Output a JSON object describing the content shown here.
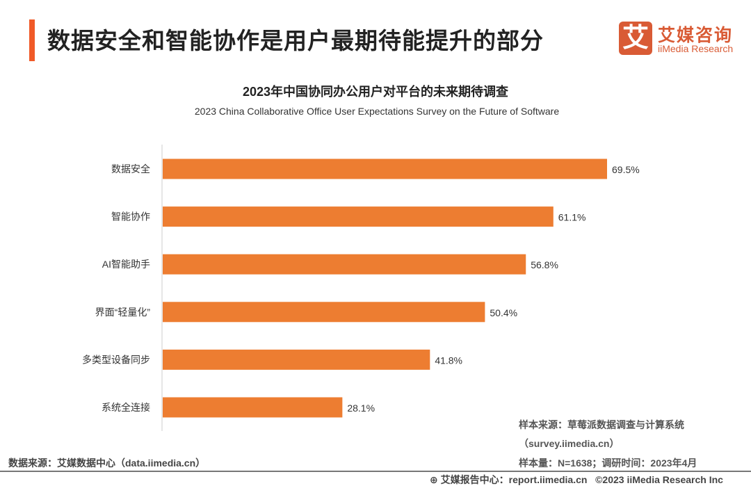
{
  "header": {
    "title": "数据安全和智能协作是用户最期待能提升的部分",
    "logo_cn": "艾媒咨询",
    "logo_en": "iiMedia Research",
    "logo_mark": "艾"
  },
  "chart_data": {
    "type": "bar",
    "orientation": "horizontal",
    "title": "2023年中国协同办公用户对平台的未来期待调查",
    "subtitle": "2023 China Collaborative Office User Expectations Survey on the Future of Software",
    "categories": [
      "数据安全",
      "智能协作",
      "AI智能助手",
      "界面“轻量化”",
      "多类型设备同步",
      "系统全连接"
    ],
    "values": [
      69.5,
      61.1,
      56.8,
      50.4,
      41.8,
      28.1
    ],
    "data_labels": [
      "69.5%",
      "61.1%",
      "56.8%",
      "50.4%",
      "41.8%",
      "28.1%"
    ],
    "unit": "%",
    "xlim": [
      0,
      80
    ],
    "grid": false,
    "color": "#ed7d31"
  },
  "notes": {
    "sample_source": "样本来源：草莓派数据调查与计算系统",
    "sample_url": "（survey.iimedia.cn）",
    "sample_size": "样本量：N=1638；调研时间：2023年4月"
  },
  "footer": {
    "data_source": "数据来源：艾媒数据中心（data.iimedia.cn）",
    "report": "艾媒报告中心：report.iimedia.cn",
    "copyright": "©2023  iiMedia Research  Inc"
  }
}
